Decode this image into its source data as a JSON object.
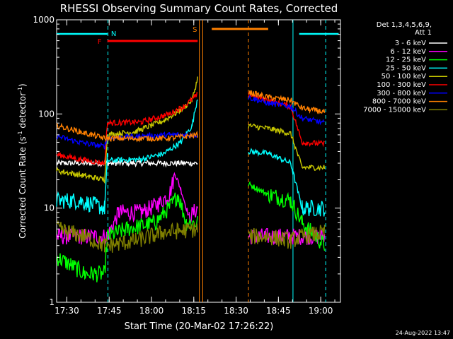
{
  "chart_data": {
    "type": "line",
    "title": "RHESSI Observing Summary Count Rates, Corrected",
    "xlabel": "Start Time (20-Mar-02 17:26:22)",
    "ylabel": "Corrected Count Rate (s",
    "ylabel_sup1": "-1",
    "ylabel_mid": " detector",
    "ylabel_sup2": "-1",
    "ylabel_end": ")",
    "yscale": "log",
    "ylim": [
      1,
      1000
    ],
    "xlim": [
      "17:26:22",
      "19:07:00"
    ],
    "x_unit": "minutes after 17:26:22",
    "y_ticks": [
      "1",
      "10",
      "100",
      "1000"
    ],
    "x_ticks": [
      "17:30",
      "17:45",
      "18:00",
      "18:15",
      "18:30",
      "18:45",
      "19:00"
    ],
    "x_tick_minutes": [
      3.63,
      18.63,
      33.63,
      48.63,
      63.63,
      78.63,
      93.63
    ],
    "legend_header": [
      "Det 1,3,4,5,6,9,",
      "Att 1"
    ],
    "legend_position": "right, outside plot",
    "footer": "24-Aug-2022 13:47",
    "annotations": {
      "N": {
        "label": "N",
        "color": "#00ffff"
      },
      "F": {
        "label": "F",
        "color": "#ff0000"
      },
      "S": {
        "label": "S",
        "color": "#ff8000"
      }
    },
    "night_intervals_minutes": [
      [
        0,
        18
      ],
      [
        86,
        100
      ]
    ],
    "flare_interval_minutes": [
      18,
      50
    ],
    "saa_interval_minutes": [
      55,
      75
    ],
    "gap_minutes": [
      51,
      68
    ],
    "vlines": [
      {
        "x": 18.2,
        "color": "#00ffff",
        "style": "dashed"
      },
      {
        "x": 50.6,
        "color": "#ff8000",
        "style": "solid"
      },
      {
        "x": 51.8,
        "color": "#ff8000",
        "style": "solid"
      },
      {
        "x": 68.0,
        "color": "#ff8000",
        "style": "dashed"
      },
      {
        "x": 83.8,
        "color": "#00ffff",
        "style": "solid"
      },
      {
        "x": 95.4,
        "color": "#00ffff",
        "style": "dashed"
      }
    ],
    "series": [
      {
        "name": "3 - 6 keV",
        "color": "#ffffff",
        "points": [
          [
            0,
            30
          ],
          [
            18,
            30
          ],
          [
            20,
            30
          ],
          [
            50,
            30
          ],
          [
            68,
            30
          ]
        ]
      },
      {
        "name": "6 - 12 keV",
        "color": "#ff00ff",
        "points": [
          [
            0,
            5
          ],
          [
            10,
            5
          ],
          [
            18,
            5
          ],
          [
            22,
            9
          ],
          [
            30,
            9
          ],
          [
            36,
            11
          ],
          [
            40,
            14
          ],
          [
            42,
            23
          ],
          [
            44,
            16
          ],
          [
            47,
            8
          ],
          [
            50,
            10
          ],
          [
            68,
            5
          ],
          [
            80,
            5
          ],
          [
            95,
            5
          ]
        ]
      },
      {
        "name": "12 - 25 keV",
        "color": "#00ff00",
        "points": [
          [
            0,
            3
          ],
          [
            5,
            2.5
          ],
          [
            10,
            2
          ],
          [
            17,
            2
          ],
          [
            18,
            5
          ],
          [
            25,
            6
          ],
          [
            35,
            7
          ],
          [
            41,
            11
          ],
          [
            43,
            14
          ],
          [
            46,
            7
          ],
          [
            50,
            7
          ],
          [
            68,
            18
          ],
          [
            75,
            14
          ],
          [
            83,
            12
          ],
          [
            87,
            7
          ],
          [
            95,
            4
          ]
        ]
      },
      {
        "name": "25 - 50 keV",
        "color": "#00ffff",
        "points": [
          [
            0,
            12
          ],
          [
            8,
            12
          ],
          [
            17,
            10
          ],
          [
            18,
            32
          ],
          [
            30,
            33
          ],
          [
            38,
            38
          ],
          [
            44,
            50
          ],
          [
            48,
            75
          ],
          [
            50,
            150
          ],
          [
            68,
            40
          ],
          [
            75,
            38
          ],
          [
            83,
            30
          ],
          [
            87,
            10
          ],
          [
            95,
            10
          ]
        ]
      },
      {
        "name": "50 - 100 keV",
        "color": "#c8c800",
        "points": [
          [
            0,
            25
          ],
          [
            10,
            22
          ],
          [
            17,
            20
          ],
          [
            18,
            60
          ],
          [
            28,
            65
          ],
          [
            38,
            85
          ],
          [
            44,
            110
          ],
          [
            48,
            140
          ],
          [
            50,
            240
          ],
          [
            68,
            75
          ],
          [
            75,
            70
          ],
          [
            83,
            62
          ],
          [
            87,
            27
          ],
          [
            95,
            27
          ]
        ]
      },
      {
        "name": "100 - 300 keV",
        "color": "#ff0000",
        "points": [
          [
            0,
            37
          ],
          [
            8,
            33
          ],
          [
            17,
            30
          ],
          [
            18,
            80
          ],
          [
            30,
            82
          ],
          [
            40,
            100
          ],
          [
            45,
            120
          ],
          [
            50,
            160
          ],
          [
            68,
            160
          ],
          [
            75,
            140
          ],
          [
            83,
            120
          ],
          [
            87,
            50
          ],
          [
            95,
            48
          ]
        ]
      },
      {
        "name": "300 - 800 keV",
        "color": "#0000ff",
        "points": [
          [
            0,
            58
          ],
          [
            8,
            50
          ],
          [
            17,
            45
          ],
          [
            18,
            55
          ],
          [
            30,
            58
          ],
          [
            40,
            60
          ],
          [
            50,
            60
          ],
          [
            68,
            150
          ],
          [
            75,
            130
          ],
          [
            83,
            120
          ],
          [
            87,
            90
          ],
          [
            95,
            80
          ]
        ]
      },
      {
        "name": "800 - 7000 keV",
        "color": "#ff8000",
        "points": [
          [
            0,
            75
          ],
          [
            8,
            65
          ],
          [
            17,
            55
          ],
          [
            18,
            55
          ],
          [
            30,
            55
          ],
          [
            40,
            55
          ],
          [
            50,
            60
          ],
          [
            68,
            170
          ],
          [
            75,
            150
          ],
          [
            83,
            140
          ],
          [
            87,
            115
          ],
          [
            95,
            105
          ]
        ]
      },
      {
        "name": "7000 - 15000 keV",
        "color": "#808000",
        "points": [
          [
            0,
            6
          ],
          [
            10,
            5
          ],
          [
            17,
            4
          ],
          [
            18,
            4
          ],
          [
            28,
            4.5
          ],
          [
            38,
            5.5
          ],
          [
            50,
            6
          ],
          [
            68,
            5
          ],
          [
            75,
            5
          ],
          [
            83,
            4.5
          ],
          [
            87,
            5
          ],
          [
            95,
            5.5
          ]
        ]
      }
    ]
  }
}
